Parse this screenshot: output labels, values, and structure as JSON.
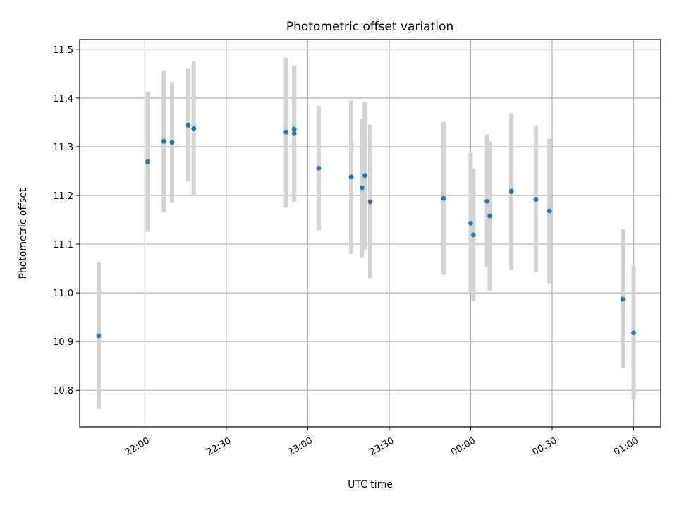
{
  "chart_data": {
    "type": "scatter",
    "title": "Photometric offset variation",
    "xlabel": "UTC time",
    "ylabel": "Photometric offset",
    "x_is_time": true,
    "xlim": [
      "21:36",
      "01:10"
    ],
    "ylim": [
      10.725,
      11.52
    ],
    "xticks": [
      "22:00",
      "22:30",
      "23:00",
      "23:30",
      "00:00",
      "00:30",
      "01:00"
    ],
    "yticks": [
      "10.8",
      "10.9",
      "11.0",
      "11.1",
      "11.2",
      "11.3",
      "11.4",
      "11.5"
    ],
    "grid": true,
    "colors": {
      "point": "#1f77b4",
      "errorbar": "#d3d3d3",
      "grid": "#b0b0b0"
    },
    "series": [
      {
        "points": [
          {
            "time": "21:43",
            "y": 10.912,
            "ylow": 10.763,
            "yhigh": 11.062
          },
          {
            "time": "22:01",
            "y": 11.269,
            "ylow": 11.125,
            "yhigh": 11.413
          },
          {
            "time": "22:07",
            "y": 11.311,
            "ylow": 11.165,
            "yhigh": 11.457
          },
          {
            "time": "22:10",
            "y": 11.309,
            "ylow": 11.185,
            "yhigh": 11.433
          },
          {
            "time": "22:16",
            "y": 11.344,
            "ylow": 11.228,
            "yhigh": 11.46
          },
          {
            "time": "22:18",
            "y": 11.337,
            "ylow": 11.2,
            "yhigh": 11.475
          },
          {
            "time": "22:52",
            "y": 11.33,
            "ylow": 11.175,
            "yhigh": 11.483
          },
          {
            "time": "22:55",
            "y": 11.336,
            "ylow": 11.187,
            "yhigh": 11.467
          },
          {
            "time": "22:55",
            "y": 11.327,
            "ylow": 11.187,
            "yhigh": 11.467
          },
          {
            "time": "23:04",
            "y": 11.256,
            "ylow": 11.128,
            "yhigh": 11.384
          },
          {
            "time": "23:16",
            "y": 11.238,
            "ylow": 11.08,
            "yhigh": 11.395
          },
          {
            "time": "23:20",
            "y": 11.216,
            "ylow": 11.073,
            "yhigh": 11.358
          },
          {
            "time": "23:21",
            "y": 11.241,
            "ylow": 11.09,
            "yhigh": 11.393
          },
          {
            "time": "23:23",
            "y": 11.187,
            "ylow": 11.03,
            "yhigh": 11.345
          },
          {
            "time": "23:50",
            "y": 11.194,
            "ylow": 11.037,
            "yhigh": 11.351
          },
          {
            "time": "00:00",
            "y": 11.143,
            "ylow": 11.0,
            "yhigh": 11.287
          },
          {
            "time": "00:01",
            "y": 11.119,
            "ylow": 10.983,
            "yhigh": 11.255
          },
          {
            "time": "00:06",
            "y": 11.188,
            "ylow": 11.053,
            "yhigh": 11.325
          },
          {
            "time": "00:07",
            "y": 11.158,
            "ylow": 11.005,
            "yhigh": 11.311
          },
          {
            "time": "00:15",
            "y": 11.209,
            "ylow": 11.065,
            "yhigh": 11.353
          },
          {
            "time": "00:15",
            "y": 11.208,
            "ylow": 11.047,
            "yhigh": 11.369
          },
          {
            "time": "00:24",
            "y": 11.192,
            "ylow": 11.042,
            "yhigh": 11.343
          },
          {
            "time": "00:29",
            "y": 11.168,
            "ylow": 11.02,
            "yhigh": 11.316
          },
          {
            "time": "00:56",
            "y": 10.987,
            "ylow": 10.845,
            "yhigh": 11.131
          },
          {
            "time": "01:00",
            "y": 10.918,
            "ylow": 10.782,
            "yhigh": 11.055
          }
        ]
      }
    ]
  }
}
